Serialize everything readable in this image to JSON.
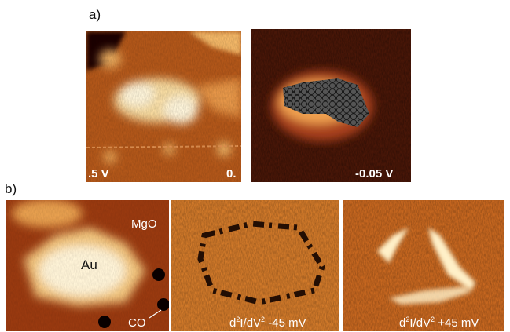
{
  "panel_a": {
    "label": "a)",
    "images": [
      {
        "labels": [
          ".5 V",
          "0."
        ]
      },
      {
        "labels": [
          "-0.05 V"
        ]
      }
    ]
  },
  "panel_b": {
    "label": "b)",
    "images": [
      {
        "labels": [
          "MgO",
          "Au",
          "CO"
        ]
      },
      {
        "label_parts": [
          "d",
          "2",
          "I/dV",
          "2",
          " -45 mV"
        ]
      },
      {
        "label_parts": [
          "d",
          "2",
          "I/dV",
          "2",
          " +45 mV"
        ]
      }
    ]
  }
}
